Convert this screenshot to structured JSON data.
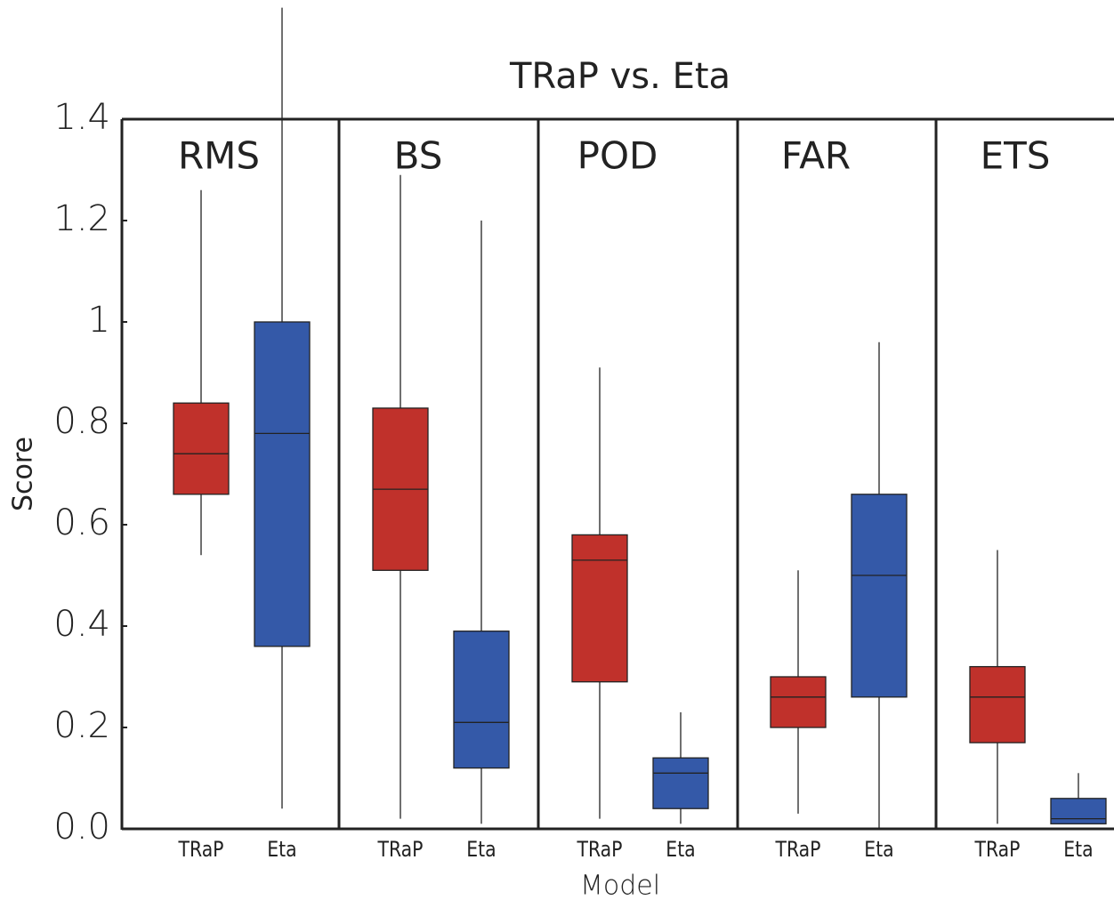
{
  "chart_data": {
    "type": "box",
    "title": "TRaP vs. Eta",
    "y_label": "Score",
    "x_label": "Model",
    "colors": [
      "#c0312b",
      "#3459a8"
    ],
    "ylim": [
      0,
      1.4
    ],
    "yticks": [
      {
        "value": 0,
        "label": "0.0"
      },
      0.2,
      0.4,
      0.6,
      0.8,
      1,
      1.2,
      1.4
    ],
    "panels": [
      {
        "name": "RMS",
        "categories": [
          "TRaP",
          "Eta"
        ],
        "boxes": [
          {
            "low": 0.54,
            "q1": 0.66,
            "median": 0.74,
            "q3": 0.84,
            "high": 1.26
          },
          {
            "low": 0.04,
            "q1": 0.36,
            "median": 0.78,
            "q3": 1.0,
            "high": 1.62
          }
        ]
      },
      {
        "name": "BS",
        "categories": [
          "TRaP",
          "Eta"
        ],
        "boxes": [
          {
            "low": 0.02,
            "q1": 0.51,
            "median": 0.67,
            "q3": 0.83,
            "high": 1.29
          },
          {
            "low": 0.01,
            "q1": 0.12,
            "median": 0.21,
            "q3": 0.39,
            "high": 1.2
          }
        ]
      },
      {
        "name": "POD",
        "categories": [
          "TRaP",
          "Eta"
        ],
        "boxes": [
          {
            "low": 0.02,
            "q1": 0.29,
            "median": 0.53,
            "q3": 0.58,
            "high": 0.91
          },
          {
            "low": 0.01,
            "q1": 0.04,
            "median": 0.11,
            "q3": 0.14,
            "high": 0.23
          }
        ]
      },
      {
        "name": "FAR",
        "categories": [
          "TRaP",
          "Eta"
        ],
        "boxes": [
          {
            "low": 0.03,
            "q1": 0.2,
            "median": 0.26,
            "q3": 0.3,
            "high": 0.51
          },
          {
            "low": 0.0,
            "q1": 0.26,
            "median": 0.5,
            "q3": 0.66,
            "high": 0.96
          }
        ]
      },
      {
        "name": "ETS",
        "categories": [
          "TRaP",
          "Eta"
        ],
        "boxes": [
          {
            "low": 0.01,
            "q1": 0.17,
            "median": 0.26,
            "q3": 0.32,
            "high": 0.55
          },
          {
            "low": 0.01,
            "q1": 0.01,
            "median": 0.02,
            "q3": 0.06,
            "high": 0.11
          }
        ]
      }
    ]
  }
}
